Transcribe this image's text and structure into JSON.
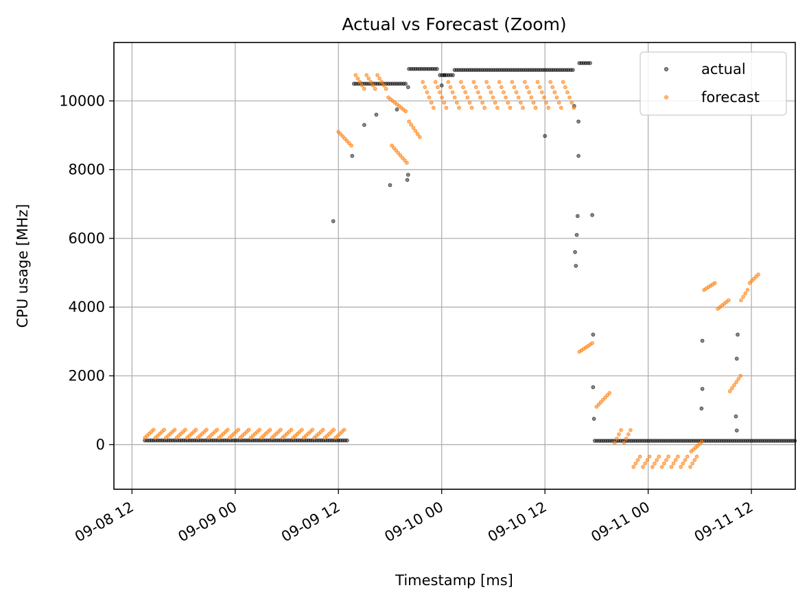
{
  "chart_data": {
    "type": "scatter",
    "title": "Actual vs Forecast (Zoom)",
    "xlabel": "Timestamp [ms]",
    "ylabel": "CPU usage [MHz]",
    "x_tick_labels": [
      "09-08 12",
      "09-09 00",
      "09-09 12",
      "09-10 00",
      "09-10 12",
      "09-11 00",
      "09-11 12"
    ],
    "y_tick_labels": [
      "0",
      "2000",
      "4000",
      "6000",
      "8000",
      "10000"
    ],
    "x_ticks_hours": [
      0,
      12,
      24,
      36,
      48,
      60,
      72
    ],
    "y_ticks": [
      0,
      2000,
      4000,
      6000,
      8000,
      10000
    ],
    "xlim_hours": [
      -2.1,
      77.1
    ],
    "ylim": [
      -1300,
      11700
    ],
    "x_unit_note": "hours after 09-08 12",
    "grid": true,
    "legend_position": "top-right",
    "legend": [
      "actual",
      "forecast"
    ],
    "colors": {
      "actual": "#000000",
      "forecast": "#ff7f0e"
    },
    "series": [
      {
        "name": "actual",
        "segments": [
          {
            "x_start": 1.5,
            "x_end": 25.0,
            "y": 120
          },
          {
            "x_start": 25.8,
            "x_end": 32.0,
            "y": 10500
          },
          {
            "x_start": 32.2,
            "x_end": 35.5,
            "y": 10930
          },
          {
            "x_start": 35.8,
            "x_end": 37.5,
            "y": 10750
          },
          {
            "x_start": 37.5,
            "x_end": 51.3,
            "y": 10900
          },
          {
            "x_start": 52.0,
            "x_end": 53.4,
            "y": 11100
          },
          {
            "x_start": 53.8,
            "x_end": 77.2,
            "y": 110
          }
        ],
        "points": [
          [
            23.4,
            6500
          ],
          [
            25.6,
            8400
          ],
          [
            27.0,
            9300
          ],
          [
            28.4,
            9600
          ],
          [
            30.0,
            7550
          ],
          [
            30.8,
            9750
          ],
          [
            32.0,
            7700
          ],
          [
            32.1,
            7850
          ],
          [
            32.1,
            10400
          ],
          [
            36.0,
            10450
          ],
          [
            36.3,
            10750
          ],
          [
            48.0,
            8980
          ],
          [
            51.4,
            9850
          ],
          [
            51.5,
            5600
          ],
          [
            51.6,
            5200
          ],
          [
            51.7,
            6100
          ],
          [
            51.8,
            6650
          ],
          [
            51.9,
            8400
          ],
          [
            51.9,
            9400
          ],
          [
            53.5,
            6680
          ],
          [
            53.6,
            3200
          ],
          [
            53.6,
            1670
          ],
          [
            53.7,
            750
          ],
          [
            66.2,
            1050
          ],
          [
            66.3,
            1620
          ],
          [
            66.3,
            3020
          ],
          [
            70.3,
            410
          ],
          [
            70.2,
            820
          ],
          [
            70.3,
            2500
          ],
          [
            70.4,
            3200
          ]
        ]
      },
      {
        "name": "forecast",
        "note": "sawtooth runs; each run rises linearly from y_start to y_end",
        "segments": [
          {
            "x_start": 1.5,
            "x_end": 24.9,
            "runs": 19,
            "y_start": 200,
            "y_end": 430
          },
          {
            "x_start": 24.0,
            "x_end": 25.8,
            "runs": 1,
            "y_start": 9100,
            "y_end": 8700
          },
          {
            "x_start": 26.0,
            "x_end": 29.8,
            "runs": 3,
            "y_start": 10750,
            "y_end": 10350
          },
          {
            "x_start": 29.8,
            "x_end": 32.0,
            "runs": 1,
            "y_start": 10100,
            "y_end": 9700
          },
          {
            "x_start": 30.2,
            "x_end": 32.3,
            "runs": 1,
            "y_start": 8700,
            "y_end": 8200
          },
          {
            "x_start": 32.2,
            "x_end": 33.8,
            "runs": 1,
            "y_start": 9400,
            "y_end": 8950
          },
          {
            "x_start": 33.8,
            "x_end": 51.6,
            "runs": 12,
            "y_start": 10550,
            "y_end": 9800
          },
          {
            "x_start": 52.0,
            "x_end": 53.7,
            "runs": 1,
            "y_start": 2700,
            "y_end": 2950
          },
          {
            "x_start": 54.0,
            "x_end": 55.8,
            "runs": 1,
            "y_start": 1100,
            "y_end": 1500
          },
          {
            "x_start": 56.1,
            "x_end": 58.3,
            "runs": 2,
            "y_start": 50,
            "y_end": 420
          },
          {
            "x_start": 58.3,
            "x_end": 66.0,
            "runs": 7,
            "y_start": -650,
            "y_end": -350
          },
          {
            "x_start": 65.0,
            "x_end": 66.5,
            "runs": 1,
            "y_start": -200,
            "y_end": 80
          },
          {
            "x_start": 66.5,
            "x_end": 68.1,
            "runs": 1,
            "y_start": 4500,
            "y_end": 4700
          },
          {
            "x_start": 68.1,
            "x_end": 69.5,
            "runs": 1,
            "y_start": 3950,
            "y_end": 4200
          },
          {
            "x_start": 69.5,
            "x_end": 71.0,
            "runs": 1,
            "y_start": 1550,
            "y_end": 2000
          },
          {
            "x_start": 70.8,
            "x_end": 71.8,
            "runs": 1,
            "y_start": 4200,
            "y_end": 4500
          },
          {
            "x_start": 71.8,
            "x_end": 73.0,
            "runs": 1,
            "y_start": 4700,
            "y_end": 4950
          }
        ]
      }
    ]
  }
}
